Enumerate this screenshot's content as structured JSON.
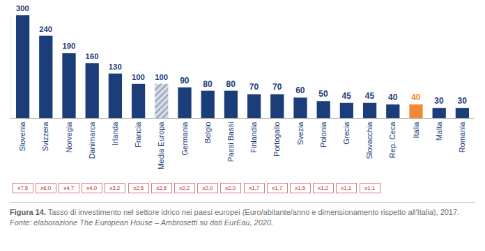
{
  "chart_data": {
    "type": "bar",
    "categories": [
      "Slovenia",
      "Svizzera",
      "Norvegia",
      "Danimarca",
      "Irlanda",
      "Francia",
      "Media Europa",
      "Germania",
      "Belgio",
      "Paesi Bassi",
      "Finlandia",
      "Portogallo",
      "Svezia",
      "Polonia",
      "Grecia",
      "Slovacchia",
      "Rep. Ceca",
      "Italia",
      "Malta",
      "Romania"
    ],
    "values": [
      300,
      240,
      190,
      160,
      130,
      100,
      100,
      90,
      80,
      80,
      70,
      70,
      60,
      50,
      45,
      45,
      40,
      40,
      30,
      30
    ],
    "colors": [
      "#1b3d7a",
      "#1b3d7a",
      "#1b3d7a",
      "#1b3d7a",
      "#1b3d7a",
      "#1b3d7a",
      "#d3dbea",
      "#1b3d7a",
      "#1b3d7a",
      "#1b3d7a",
      "#1b3d7a",
      "#1b3d7a",
      "#1b3d7a",
      "#1b3d7a",
      "#1b3d7a",
      "#1b3d7a",
      "#1b3d7a",
      "#f28a35",
      "#1b3d7a",
      "#1b3d7a"
    ],
    "marker": "hatched",
    "hatched": [
      "Media Europa"
    ],
    "ratio_labels": [
      "x7,5",
      "x6,0",
      "x4,7",
      "x4,0",
      "x3,2",
      "x2,5",
      "x2,5",
      "x2,2",
      "x2,0",
      "x2,0",
      "x1,7",
      "x1,7",
      "x1,5",
      "x1,2",
      "x1,1",
      "x1,1",
      null,
      null,
      null,
      null
    ],
    "ylim": [
      0,
      300
    ],
    "yticks": [],
    "tick_labels": "x",
    "data_labels": true,
    "grid": false,
    "caption": {
      "label": "Figura 14.",
      "text": "Tasso di investimento nel settore idrico nei paesi europei (Euro/abitante/anno e dimensionamento rispetto all'Italia), 2017.",
      "source": "Fonte: elaborazione The European House – Ambrosetti su dati EurEau, 2020."
    }
  }
}
